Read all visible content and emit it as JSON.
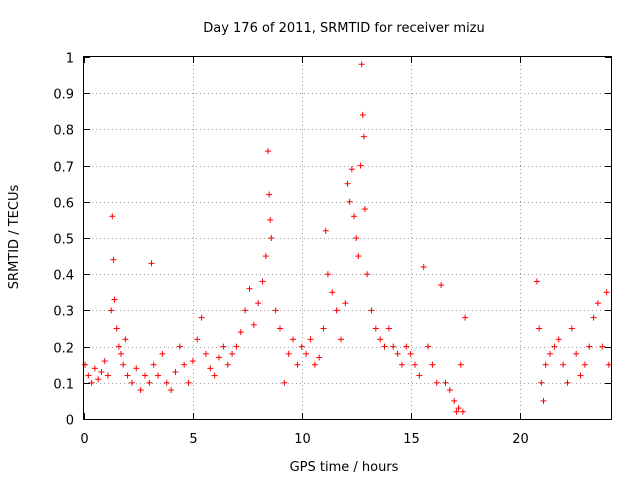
{
  "chart_data": {
    "type": "scatter",
    "title": "Day 176 of 2011, SRMTID for receiver mizu",
    "xlabel": "GPS time / hours",
    "ylabel": "SRMTID / TECUs",
    "xlim": [
      0,
      24.2
    ],
    "ylim": [
      0,
      1
    ],
    "xticks": [
      0,
      5,
      10,
      15,
      20
    ],
    "xtick_labels": [
      "0",
      "5",
      "10",
      "15",
      "20"
    ],
    "yticks": [
      0,
      0.1,
      0.2,
      0.3,
      0.4,
      0.5,
      0.6,
      0.7,
      0.8,
      0.9,
      1
    ],
    "ytick_labels": [
      "0",
      "0.1",
      "0.2",
      "0.3",
      "0.4",
      "0.5",
      "0.6",
      "0.7",
      "0.8",
      "0.9",
      "1"
    ],
    "grid": true,
    "marker": "+",
    "color": "#ff0000",
    "series": [
      {
        "name": "SRMTID",
        "x": [
          0.05,
          0.2,
          0.35,
          0.5,
          0.65,
          0.8,
          0.95,
          1.1,
          1.25,
          1.3,
          1.35,
          1.4,
          1.5,
          1.6,
          1.7,
          1.8,
          1.9,
          2.0,
          2.2,
          2.4,
          2.6,
          2.8,
          3.0,
          3.1,
          3.2,
          3.4,
          3.6,
          3.8,
          4.0,
          4.2,
          4.4,
          4.6,
          4.8,
          5.0,
          5.2,
          5.4,
          5.6,
          5.8,
          6.0,
          6.2,
          6.4,
          6.6,
          6.8,
          7.0,
          7.2,
          7.4,
          7.6,
          7.8,
          8.0,
          8.2,
          8.35,
          8.45,
          8.5,
          8.55,
          8.6,
          8.8,
          9.0,
          9.2,
          9.4,
          9.6,
          9.8,
          10.0,
          10.2,
          10.4,
          10.6,
          10.8,
          11.0,
          11.1,
          11.2,
          11.4,
          11.6,
          11.8,
          12.0,
          12.1,
          12.2,
          12.3,
          12.4,
          12.5,
          12.6,
          12.7,
          12.75,
          12.8,
          12.85,
          12.9,
          13.0,
          13.2,
          13.4,
          13.6,
          13.8,
          14.0,
          14.2,
          14.4,
          14.6,
          14.8,
          15.0,
          15.2,
          15.4,
          15.6,
          15.8,
          16.0,
          16.2,
          16.4,
          16.6,
          16.8,
          17.0,
          17.1,
          17.2,
          17.3,
          17.4,
          17.5,
          20.8,
          20.9,
          21.0,
          21.1,
          21.2,
          21.4,
          21.6,
          21.8,
          22.0,
          22.2,
          22.4,
          22.6,
          22.8,
          23.0,
          23.2,
          23.4,
          23.6,
          23.8,
          24.0,
          24.1
        ],
        "y": [
          0.15,
          0.12,
          0.1,
          0.14,
          0.11,
          0.13,
          0.16,
          0.12,
          0.3,
          0.56,
          0.44,
          0.33,
          0.25,
          0.2,
          0.18,
          0.15,
          0.22,
          0.12,
          0.1,
          0.14,
          0.08,
          0.12,
          0.1,
          0.43,
          0.15,
          0.12,
          0.18,
          0.1,
          0.08,
          0.13,
          0.2,
          0.15,
          0.1,
          0.16,
          0.22,
          0.28,
          0.18,
          0.14,
          0.12,
          0.17,
          0.2,
          0.15,
          0.18,
          0.2,
          0.24,
          0.3,
          0.36,
          0.26,
          0.32,
          0.38,
          0.45,
          0.74,
          0.62,
          0.55,
          0.5,
          0.3,
          0.25,
          0.1,
          0.18,
          0.22,
          0.15,
          0.2,
          0.18,
          0.22,
          0.15,
          0.17,
          0.25,
          0.52,
          0.4,
          0.35,
          0.3,
          0.22,
          0.32,
          0.65,
          0.6,
          0.69,
          0.56,
          0.5,
          0.45,
          0.7,
          0.98,
          0.84,
          0.78,
          0.58,
          0.4,
          0.3,
          0.25,
          0.22,
          0.2,
          0.25,
          0.2,
          0.18,
          0.15,
          0.2,
          0.18,
          0.15,
          0.12,
          0.42,
          0.2,
          0.15,
          0.1,
          0.37,
          0.1,
          0.08,
          0.05,
          0.02,
          0.03,
          0.15,
          0.02,
          0.28,
          0.38,
          0.25,
          0.1,
          0.05,
          0.15,
          0.18,
          0.2,
          0.22,
          0.15,
          0.1,
          0.25,
          0.18,
          0.12,
          0.15,
          0.2,
          0.28,
          0.32,
          0.2,
          0.35,
          0.15
        ]
      }
    ]
  }
}
